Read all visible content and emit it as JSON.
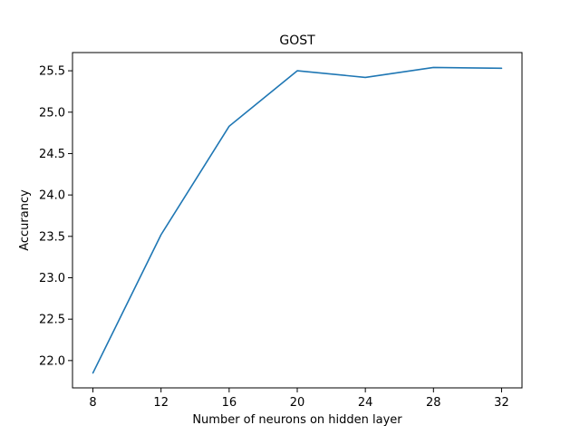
{
  "chart_data": {
    "type": "line",
    "title": "GOST",
    "xlabel": "Number of neurons on hidden layer",
    "ylabel": "Accurancy",
    "x": [
      8,
      12,
      16,
      20,
      24,
      28,
      32
    ],
    "xticks": [
      "8",
      "12",
      "16",
      "20",
      "24",
      "28",
      "32"
    ],
    "yticks": [
      "22.0",
      "22.5",
      "23.0",
      "23.5",
      "24.0",
      "24.5",
      "25.0",
      "25.5"
    ],
    "series": [
      {
        "color": "#1f77b4",
        "values": [
          21.85,
          23.52,
          24.83,
          25.5,
          25.42,
          25.54,
          25.53
        ]
      }
    ],
    "xlim": [
      6.8,
      33.2
    ],
    "ylim": [
      21.67,
      25.72
    ],
    "grid": false,
    "legend": "none"
  }
}
